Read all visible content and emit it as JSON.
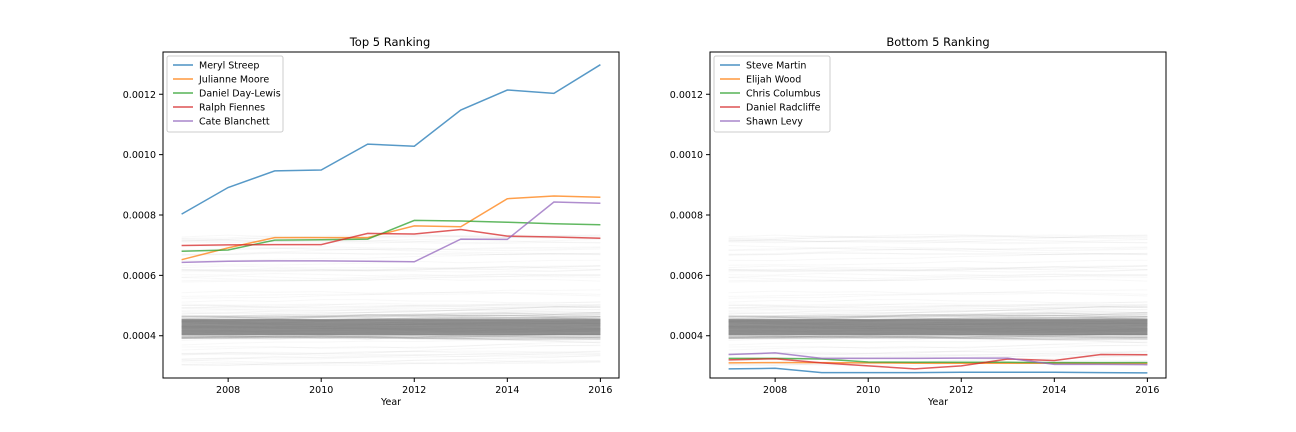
{
  "figure": {
    "background": "#ffffff"
  },
  "chart_data": [
    {
      "type": "line",
      "title": "Top 5 Ranking",
      "xlabel": "Year",
      "ylabel": "",
      "x": [
        2007,
        2008,
        2009,
        2010,
        2011,
        2012,
        2013,
        2014,
        2015,
        2016
      ],
      "xlim": [
        2006.6,
        2016.4
      ],
      "ylim": [
        0.00026,
        0.00134
      ],
      "x_ticks": [
        2008,
        2010,
        2012,
        2014,
        2016
      ],
      "x_tick_labels": [
        "2008",
        "2010",
        "2012",
        "2014",
        "2016"
      ],
      "y_ticks": [
        0.0004,
        0.0006,
        0.0008,
        0.001,
        0.0012
      ],
      "y_tick_labels": [
        "0.0004",
        "0.0006",
        "0.0008",
        "0.0010",
        "0.0012"
      ],
      "grid": false,
      "legend_position": "upper-left",
      "background_band": {
        "color": "#808080",
        "min": 0.0003,
        "max": 0.00073,
        "dense_min": 0.00039,
        "dense_max": 0.00047
      },
      "series": [
        {
          "name": "Meryl Streep",
          "color": "#1f77b4",
          "values": [
            0.000803,
            0.000891,
            0.000946,
            0.000949,
            0.001035,
            0.001028,
            0.001148,
            0.001214,
            0.001203,
            0.001298
          ]
        },
        {
          "name": "Julianne Moore",
          "color": "#ff7f0e",
          "values": [
            0.000652,
            0.000691,
            0.000725,
            0.000725,
            0.000725,
            0.000764,
            0.000761,
            0.000854,
            0.000863,
            0.000859
          ]
        },
        {
          "name": "Daniel Day-Lewis",
          "color": "#2ca02c",
          "values": [
            0.00068,
            0.000684,
            0.000717,
            0.000718,
            0.00072,
            0.000782,
            0.00078,
            0.000776,
            0.000771,
            0.000768
          ]
        },
        {
          "name": "Ralph Fiennes",
          "color": "#d62728",
          "values": [
            0.000699,
            0.000701,
            0.000702,
            0.000702,
            0.000739,
            0.000737,
            0.000752,
            0.00073,
            0.000727,
            0.000723
          ]
        },
        {
          "name": "Cate Blanchett",
          "color": "#9467bd",
          "values": [
            0.000643,
            0.000647,
            0.000648,
            0.000648,
            0.000647,
            0.000645,
            0.00072,
            0.000719,
            0.000843,
            0.000839
          ]
        }
      ]
    },
    {
      "type": "line",
      "title": "Bottom 5 Ranking",
      "xlabel": "Year",
      "ylabel": "",
      "x": [
        2007,
        2008,
        2009,
        2010,
        2011,
        2012,
        2013,
        2014,
        2015,
        2016
      ],
      "xlim": [
        2006.6,
        2016.4
      ],
      "ylim": [
        0.00026,
        0.00134
      ],
      "x_ticks": [
        2008,
        2010,
        2012,
        2014,
        2016
      ],
      "x_tick_labels": [
        "2008",
        "2010",
        "2012",
        "2014",
        "2016"
      ],
      "y_ticks": [
        0.0004,
        0.0006,
        0.0008,
        0.001,
        0.0012
      ],
      "y_tick_labels": [
        "0.0004",
        "0.0006",
        "0.0008",
        "0.0010",
        "0.0012"
      ],
      "grid": false,
      "legend_position": "upper-left",
      "background_band": {
        "color": "#808080",
        "min": 0.0003,
        "max": 0.00073,
        "dense_min": 0.00039,
        "dense_max": 0.00047
      },
      "series": [
        {
          "name": "Steve Martin",
          "color": "#1f77b4",
          "values": [
            0.00029,
            0.000292,
            0.000278,
            0.000278,
            0.000278,
            0.000279,
            0.000279,
            0.000279,
            0.000278,
            0.000277
          ]
        },
        {
          "name": "Elijah Wood",
          "color": "#ff7f0e",
          "values": [
            0.00031,
            0.000311,
            0.000311,
            0.00031,
            0.000309,
            0.000309,
            0.000309,
            0.000309,
            0.000308,
            0.000308
          ]
        },
        {
          "name": "Chris Columbus",
          "color": "#2ca02c",
          "values": [
            0.000325,
            0.000325,
            0.000323,
            0.000313,
            0.000312,
            0.000312,
            0.000312,
            0.000311,
            0.000311,
            0.000311
          ]
        },
        {
          "name": "Daniel Radcliffe",
          "color": "#d62728",
          "values": [
            0.00032,
            0.000324,
            0.00031,
            0.0003,
            0.00029,
            0.0003,
            0.000323,
            0.000318,
            0.000338,
            0.000337
          ]
        },
        {
          "name": "Shawn Levy",
          "color": "#9467bd",
          "values": [
            0.000338,
            0.000343,
            0.000325,
            0.000325,
            0.000325,
            0.000326,
            0.000326,
            0.000305,
            0.000305,
            0.000304
          ]
        }
      ]
    }
  ]
}
